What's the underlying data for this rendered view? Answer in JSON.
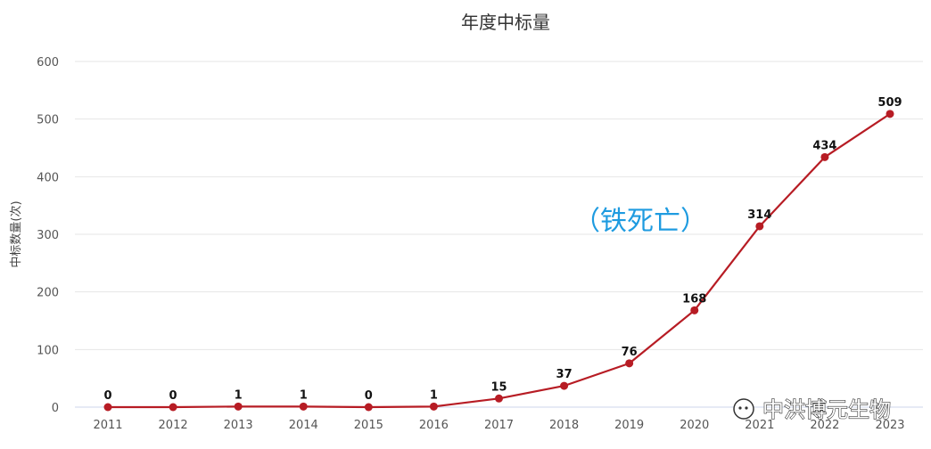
{
  "chart_data": {
    "type": "line",
    "title": "年度中标量",
    "xlabel": "",
    "ylabel": "中标数量(次)",
    "categories": [
      "2011",
      "2012",
      "2013",
      "2014",
      "2015",
      "2016",
      "2017",
      "2018",
      "2019",
      "2020",
      "2021",
      "2022",
      "2023"
    ],
    "series": [
      {
        "values": [
          0,
          0,
          1,
          1,
          0,
          1,
          15,
          37,
          76,
          168,
          314,
          434,
          509
        ]
      }
    ],
    "ylim": [
      0,
      600
    ],
    "yticks": [
      0,
      100,
      200,
      300,
      400,
      500,
      600
    ],
    "grid": true,
    "data_labels": true,
    "line_color": "#b71c24",
    "annotation": "（铁死亡）",
    "annotation_color": "#1e9be0"
  },
  "watermark": {
    "icon": "wechat-icon",
    "text": "中洪博元生物"
  }
}
